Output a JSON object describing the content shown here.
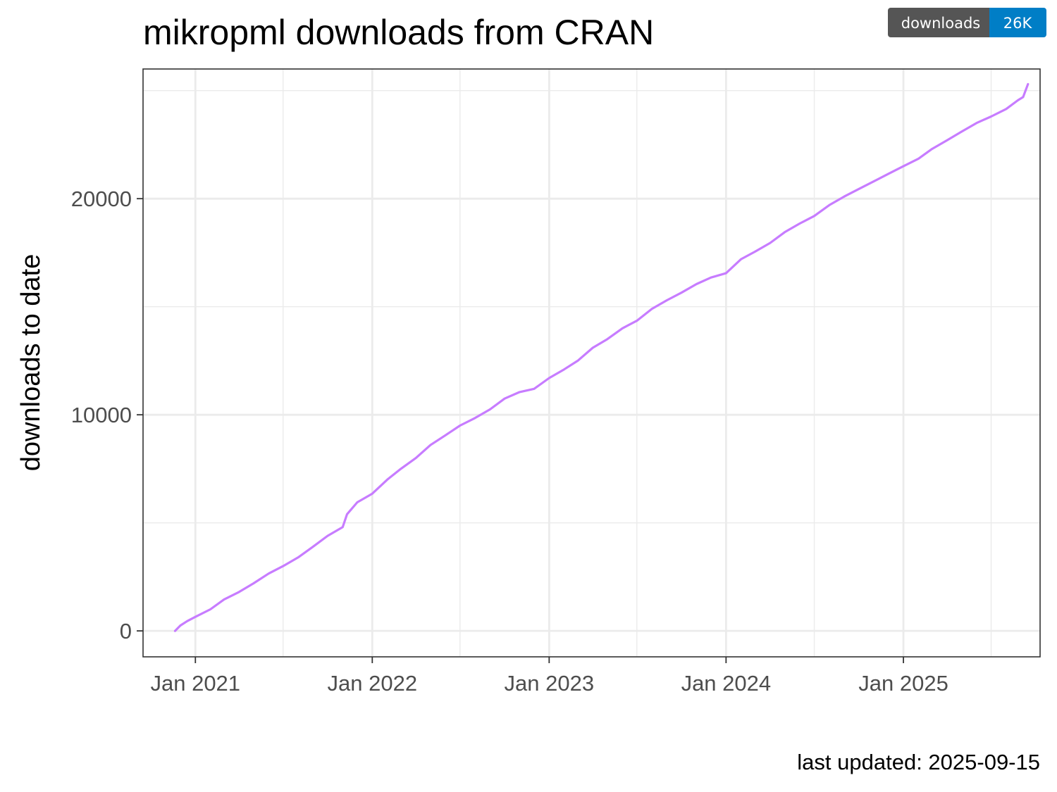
{
  "badge": {
    "label": "downloads",
    "value": "26K",
    "label_color": "#555555",
    "value_color": "#007ec6"
  },
  "caption": "last updated: 2025-09-15",
  "chart_data": {
    "type": "line",
    "title": "mikropml downloads from CRAN",
    "xlabel": "",
    "ylabel": "downloads to date",
    "x_type": "date",
    "xlim": [
      "2020-09-15",
      "2025-10-10"
    ],
    "ylim": [
      -1200,
      26000
    ],
    "x_ticks": [
      {
        "value": "2021-01-01",
        "label": "Jan 2021"
      },
      {
        "value": "2022-01-01",
        "label": "Jan 2022"
      },
      {
        "value": "2023-01-01",
        "label": "Jan 2023"
      },
      {
        "value": "2024-01-01",
        "label": "Jan 2024"
      },
      {
        "value": "2025-01-01",
        "label": "Jan 2025"
      }
    ],
    "x_minor_ticks": [
      "2021-07-01",
      "2022-07-01",
      "2023-07-01",
      "2024-07-01",
      "2025-07-01"
    ],
    "y_ticks": [
      {
        "value": 0,
        "label": "0"
      },
      {
        "value": 10000,
        "label": "10000"
      },
      {
        "value": 20000,
        "label": "20000"
      }
    ],
    "y_minor_ticks": [
      5000,
      15000,
      25000
    ],
    "grid": true,
    "legend": "none",
    "colors": {
      "line": "#c77cff",
      "grid": "#ebebeb",
      "panel_border": "#333333",
      "tick": "#333333"
    },
    "series": [
      {
        "x": [
          "2020-11-20",
          "2020-12-01",
          "2020-12-15",
          "2021-01-01",
          "2021-02-01",
          "2021-03-01",
          "2021-04-01",
          "2021-05-01",
          "2021-06-01",
          "2021-07-01",
          "2021-08-01",
          "2021-09-01",
          "2021-10-01",
          "2021-11-01",
          "2021-11-10",
          "2021-12-01",
          "2022-01-01",
          "2022-02-01",
          "2022-03-01",
          "2022-04-01",
          "2022-05-01",
          "2022-06-01",
          "2022-07-01",
          "2022-08-01",
          "2022-09-01",
          "2022-10-01",
          "2022-11-01",
          "2022-12-01",
          "2023-01-01",
          "2023-02-01",
          "2023-03-01",
          "2023-04-01",
          "2023-05-01",
          "2023-06-01",
          "2023-07-01",
          "2023-08-01",
          "2023-09-01",
          "2023-10-01",
          "2023-11-01",
          "2023-12-01",
          "2024-01-01",
          "2024-02-01",
          "2024-03-01",
          "2024-04-01",
          "2024-05-01",
          "2024-06-01",
          "2024-07-01",
          "2024-08-01",
          "2024-09-01",
          "2024-10-01",
          "2024-11-01",
          "2024-12-01",
          "2025-01-01",
          "2025-02-01",
          "2025-03-01",
          "2025-04-01",
          "2025-05-01",
          "2025-06-01",
          "2025-07-01",
          "2025-08-01",
          "2025-08-25",
          "2025-09-05",
          "2025-09-15"
        ],
        "y": [
          0,
          250,
          450,
          650,
          1000,
          1450,
          1800,
          2200,
          2650,
          3000,
          3400,
          3900,
          4400,
          4800,
          5400,
          5950,
          6350,
          7000,
          7500,
          8000,
          8600,
          9050,
          9500,
          9850,
          10250,
          10750,
          11050,
          11200,
          11700,
          12100,
          12500,
          13100,
          13500,
          14000,
          14350,
          14900,
          15300,
          15650,
          16050,
          16350,
          16550,
          17200,
          17550,
          17950,
          18450,
          18850,
          19200,
          19700,
          20100,
          20450,
          20800,
          21150,
          21500,
          21850,
          22300,
          22700,
          23100,
          23500,
          23800,
          24150,
          24550,
          24700,
          25300
        ]
      }
    ]
  }
}
